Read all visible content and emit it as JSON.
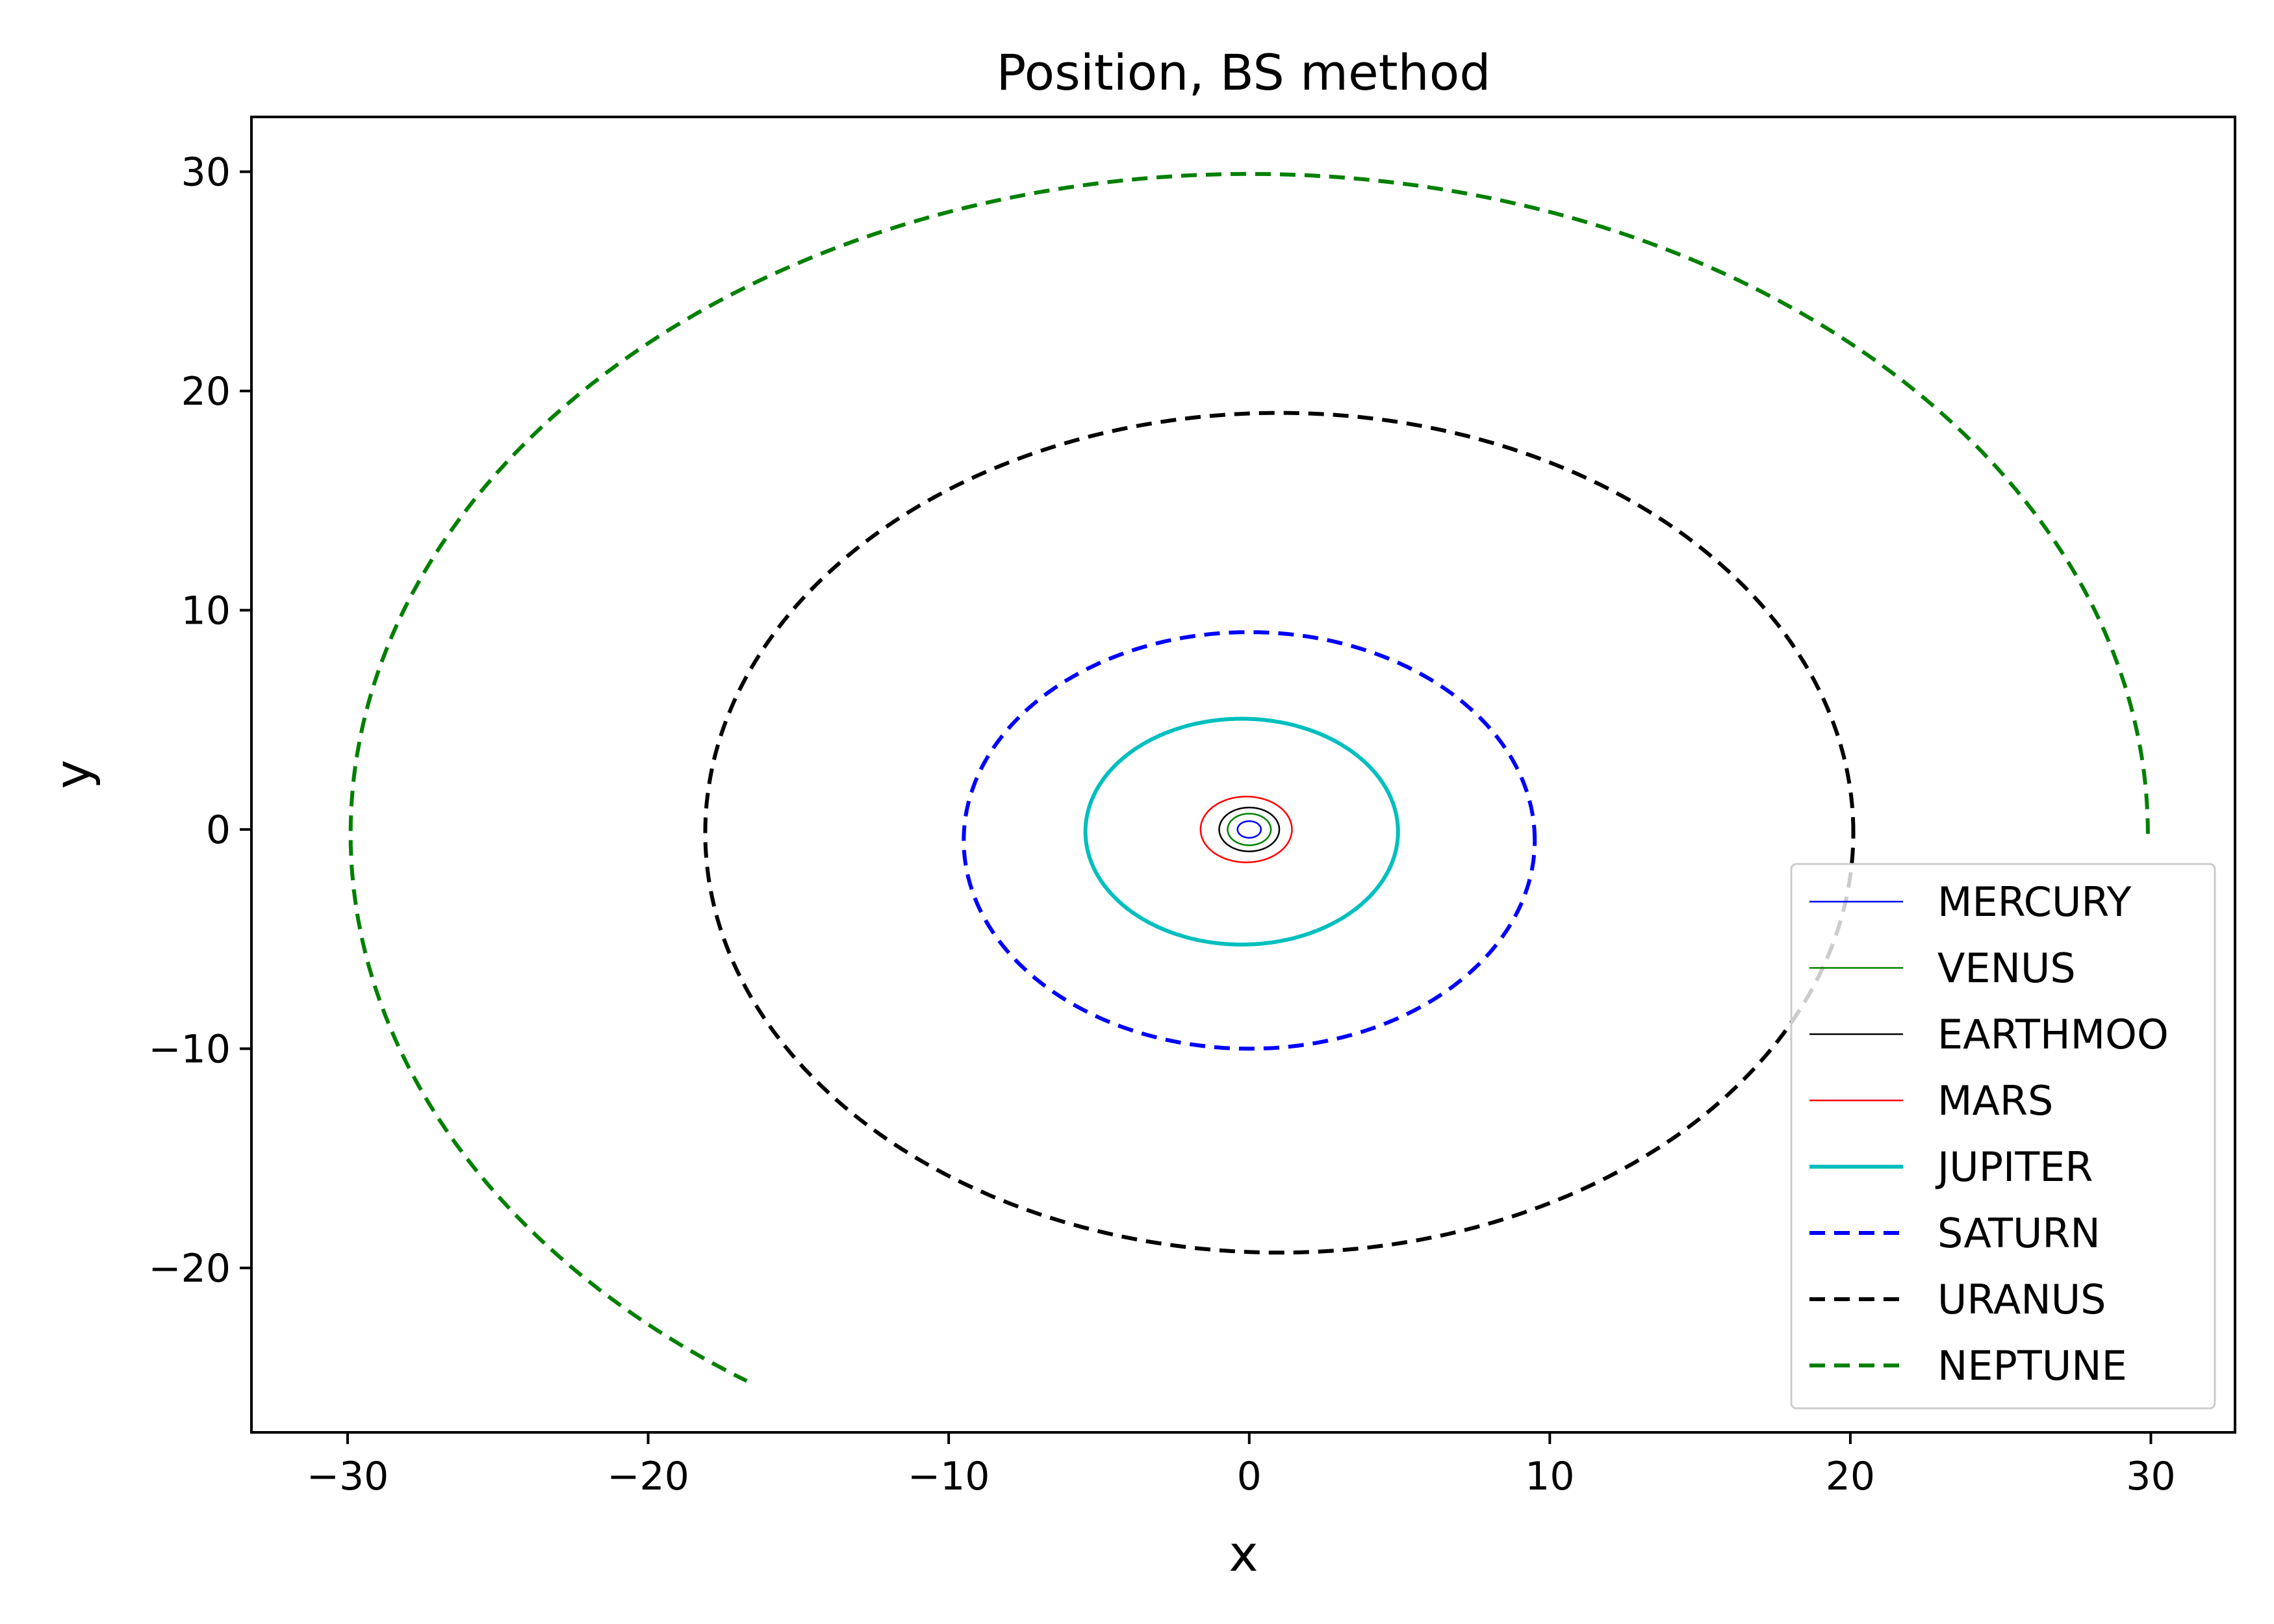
{
  "chart_data": {
    "type": "line",
    "title": "Position, BS method",
    "xlabel": "x",
    "ylabel": "y",
    "xlim": [
      -33.2,
      32.8
    ],
    "ylim": [
      -27.5,
      32.5
    ],
    "xticks": [
      -30,
      -20,
      -10,
      0,
      10,
      20,
      30
    ],
    "xtick_labels": [
      "−30",
      "−20",
      "−10",
      "0",
      "10",
      "20",
      "30"
    ],
    "yticks": [
      -20,
      -10,
      0,
      10,
      20,
      30
    ],
    "ytick_labels": [
      "−20",
      "−10",
      "0",
      "10",
      "20",
      "30"
    ],
    "grid": false,
    "legend_position": "lower right",
    "series": [
      {
        "name": "MERCURY",
        "color": "#0000ff",
        "style": "solid",
        "width": "thin",
        "center": [
          0,
          0
        ],
        "rx": 0.39,
        "ry": 0.38,
        "start_angle": 0,
        "end_angle": 360
      },
      {
        "name": "VENUS",
        "color": "#008000",
        "style": "solid",
        "width": "thin",
        "center": [
          0,
          0
        ],
        "rx": 0.72,
        "ry": 0.72,
        "start_angle": 0,
        "end_angle": 360
      },
      {
        "name": "EARTHMOO",
        "color": "#000000",
        "style": "solid",
        "width": "thin",
        "center": [
          0,
          0
        ],
        "rx": 1.0,
        "ry": 1.0,
        "start_angle": 0,
        "end_angle": 360
      },
      {
        "name": "MARS",
        "color": "#ff0000",
        "style": "solid",
        "width": "thin",
        "center": [
          -0.1,
          0
        ],
        "rx": 1.52,
        "ry": 1.5,
        "start_angle": 0,
        "end_angle": 360
      },
      {
        "name": "JUPITER",
        "color": "#00bfbf",
        "style": "solid",
        "width": "thick",
        "center": [
          -0.25,
          -0.1
        ],
        "rx": 5.2,
        "ry": 5.15,
        "start_angle": 0,
        "end_angle": 360
      },
      {
        "name": "SATURN",
        "color": "#0000ff",
        "style": "dashed",
        "width": "thick",
        "center": [
          0,
          -0.5
        ],
        "rx": 9.5,
        "ry": 9.5,
        "start_angle": 0,
        "end_angle": 360
      },
      {
        "name": "URANUS",
        "color": "#000000",
        "style": "dashed",
        "width": "thick",
        "center": [
          1.0,
          -0.15
        ],
        "rx": 19.1,
        "ry": 19.15,
        "start_angle": 0,
        "end_angle": 360
      },
      {
        "name": "NEPTUNE",
        "color": "#008000",
        "style": "dashed",
        "width": "thick",
        "center": [
          0,
          -0.2
        ],
        "rx": 29.9,
        "ry": 30.1,
        "start_angle": 0,
        "end_angle": 236
      }
    ]
  }
}
